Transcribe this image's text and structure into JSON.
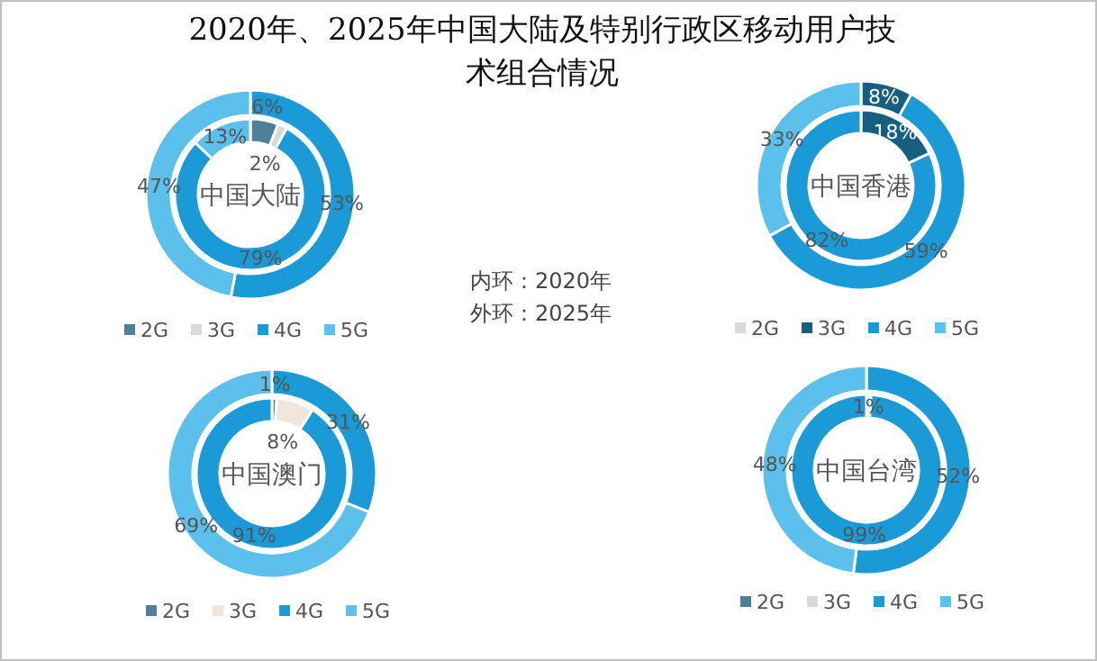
{
  "chart_data": [
    {
      "type": "donut",
      "title": "2020年、2025年中国大陆及特别行政区移动用户技术组合情况",
      "annotations": [
        "中国大陆",
        "内环：2020年",
        "外环：2025年"
      ],
      "categories": [
        "2G",
        "3G",
        "4G",
        "5G"
      ],
      "colors": [
        "#4f7f99",
        "#d9d9d9",
        "#1a9ad6",
        "#5bc0eb"
      ],
      "legend": "bottom",
      "series": [
        {
          "values": [
            6,
            2,
            79,
            13
          ],
          "value_labels": [
            "6%",
            "2%",
            "79%",
            "13%"
          ]
        },
        {
          "values": [
            0,
            0,
            53,
            47
          ],
          "value_labels": [
            null,
            null,
            "53%",
            "47%"
          ]
        }
      ]
    },
    {
      "type": "donut",
      "annotations": [
        "中国香港"
      ],
      "categories": [
        "2G",
        "3G",
        "4G",
        "5G"
      ],
      "colors": [
        "#d9d9d9",
        "#155f80",
        "#1a9ad6",
        "#5bc0eb"
      ],
      "legend": "bottom",
      "series": [
        {
          "values": [
            0,
            18,
            82,
            0
          ],
          "value_labels": [
            null,
            "18%",
            "82%",
            null
          ]
        },
        {
          "values": [
            0,
            8,
            59,
            33
          ],
          "value_labels": [
            null,
            "8%",
            "59%",
            "33%"
          ]
        }
      ]
    },
    {
      "type": "donut",
      "annotations": [
        "中国澳门"
      ],
      "categories": [
        "2G",
        "3G",
        "4G",
        "5G"
      ],
      "colors": [
        "#4f7f99",
        "#f2e6dc",
        "#1a9ad6",
        "#5bc0eb"
      ],
      "legend": "bottom",
      "series": [
        {
          "values": [
            1,
            8,
            91,
            0
          ],
          "value_labels": [
            "1%",
            "8%",
            "91%",
            null
          ]
        },
        {
          "values": [
            0,
            0,
            31,
            69
          ],
          "value_labels": [
            null,
            null,
            "31%",
            "69%"
          ]
        }
      ]
    },
    {
      "type": "donut",
      "annotations": [
        "中国台湾"
      ],
      "categories": [
        "2G",
        "3G",
        "4G",
        "5G"
      ],
      "colors": [
        "#4f7f99",
        "#d9d9d9",
        "#1a9ad6",
        "#5bc0eb"
      ],
      "legend": "bottom",
      "series": [
        {
          "values": [
            0,
            1,
            99,
            0
          ],
          "value_labels": [
            null,
            "1%",
            "99%",
            null
          ]
        },
        {
          "values": [
            0,
            0,
            52,
            48
          ],
          "value_labels": [
            null,
            null,
            "52%",
            "48%"
          ]
        }
      ]
    }
  ]
}
